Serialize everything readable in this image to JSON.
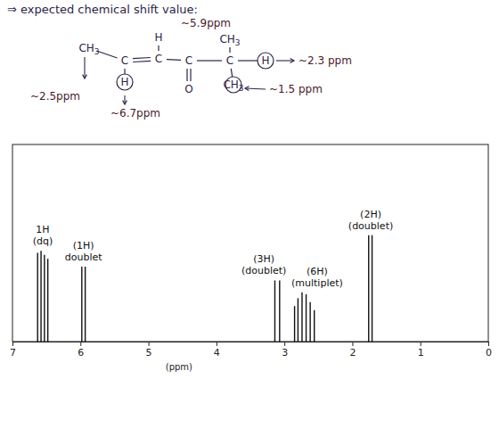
{
  "chart_data": {
    "type": "spectrum",
    "title": "⇒ expected chemical shift value:",
    "structure": [
      "CH3",
      "C",
      "H",
      "C",
      "H",
      "C",
      "O",
      "C",
      "CH3",
      "H",
      "CH3"
    ],
    "annotations": [
      "~5.9ppm",
      "~2.3 ppm",
      "~1.5 ppm",
      "~2.5ppm",
      "~6.7ppm"
    ],
    "xlabel": "(ppm)",
    "xlim": [
      7,
      0
    ],
    "xticks": [
      7,
      6,
      5,
      4,
      3,
      2,
      1,
      0
    ],
    "ylim": [
      0,
      100
    ],
    "tick_labels": "x",
    "color": "#111111",
    "peaks": [
      {
        "label": [
          "1H",
          "(dq)"
        ],
        "x": [
          6.63,
          6.58,
          6.53,
          6.48
        ],
        "values": [
          45,
          46,
          44,
          42
        ]
      },
      {
        "label": [
          "(1H)",
          "doublet"
        ],
        "x": [
          5.98,
          5.93
        ],
        "values": [
          38,
          38
        ]
      },
      {
        "label": [
          "(3H)",
          "(doublet)"
        ],
        "x": [
          3.14,
          3.07
        ],
        "values": [
          31,
          31
        ]
      },
      {
        "label": [
          "(6H)",
          "(multiplet)"
        ],
        "x": [
          2.85,
          2.8,
          2.74,
          2.68,
          2.62,
          2.56
        ],
        "values": [
          18,
          22,
          25,
          24,
          20,
          16
        ]
      },
      {
        "label": [
          "(2H)",
          "(doublet)"
        ],
        "x": [
          1.76,
          1.71
        ],
        "values": [
          54,
          54
        ]
      }
    ]
  }
}
